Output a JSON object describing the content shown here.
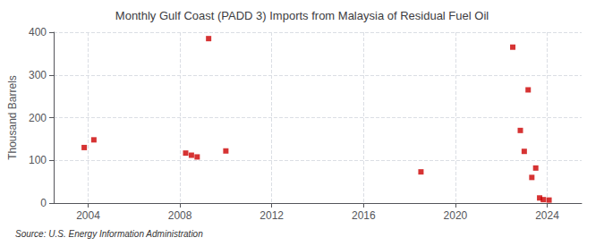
{
  "chart_data": {
    "type": "scatter",
    "title": "Monthly Gulf Coast (PADD 3) Imports from Malaysia of Residual Fuel Oil",
    "ylabel": "Thousand Barrels",
    "source": "Source: U.S. Energy Information Administration",
    "x": [
      2003.83,
      2004.25,
      2008.25,
      2008.5,
      2008.75,
      2009.25,
      2010.0,
      2018.5,
      2022.5,
      2022.83,
      2023.0,
      2023.17,
      2023.33,
      2023.5,
      2023.67,
      2023.83,
      2024.08
    ],
    "values": [
      130,
      148,
      117,
      112,
      108,
      385,
      122,
      73,
      365,
      170,
      121,
      265,
      60,
      82,
      12,
      8,
      7
    ],
    "color": "#cc0000",
    "marker": "square",
    "xlim": [
      2002.5,
      2025.5
    ],
    "xticks": [
      2004,
      2008,
      2012,
      2016,
      2020,
      2024
    ],
    "ylim": [
      0,
      400
    ],
    "yticks": [
      0,
      100,
      200,
      300,
      400
    ],
    "grid": true
  }
}
